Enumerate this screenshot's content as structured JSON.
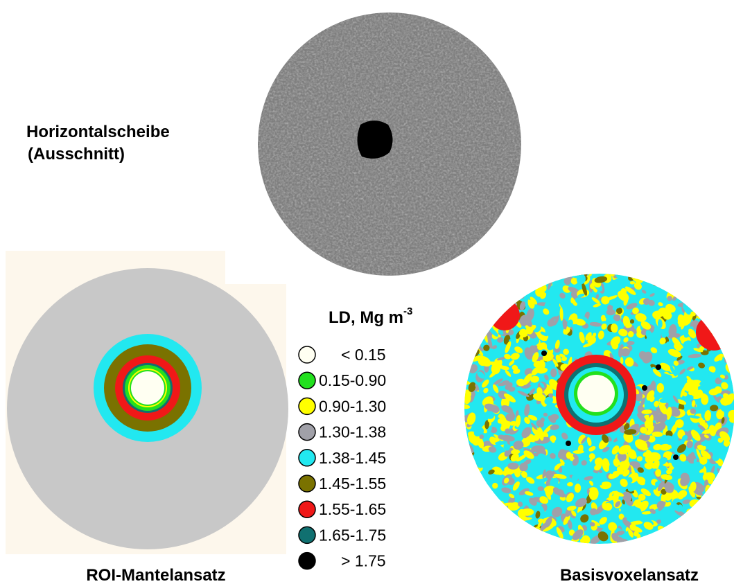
{
  "header": {
    "slice_label": [
      "Horizontalscheibe",
      "(Ausschnitt)"
    ]
  },
  "legend": {
    "title": "LD, Mg m",
    "title_sup": "-3",
    "items": [
      {
        "label": "<  0.15",
        "color": "#fffff2"
      },
      {
        "label": "0.15-0.90",
        "color": "#22e01e"
      },
      {
        "label": "0.90-1.30",
        "color": "#ffff00"
      },
      {
        "label": "1.30-1.38",
        "color": "#a0a0a8"
      },
      {
        "label": "1.38-1.45",
        "color": "#22e8f0"
      },
      {
        "label": "1.45-1.55",
        "color": "#7a7200"
      },
      {
        "label": "1.55-1.65",
        "color": "#f01818"
      },
      {
        "label": "1.65-1.75",
        "color": "#107070"
      },
      {
        "label": "> 1.75",
        "color": "#000000"
      }
    ]
  },
  "panels": {
    "roi_label": "ROI-Mantelansatz",
    "basis_label": "Basisvoxelansatz"
  }
}
